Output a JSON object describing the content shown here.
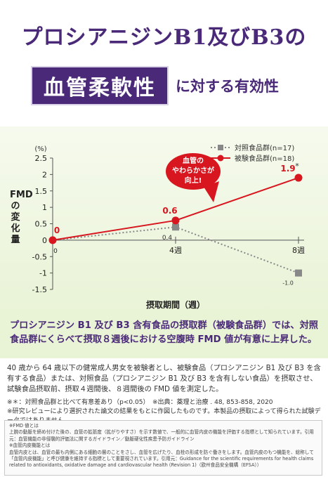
{
  "header": {
    "line1": "プロシアニジンB1及びB3の",
    "highlight": "血管柔軟性",
    "line2_rest": "に対する有効性"
  },
  "chart_data": {
    "type": "line",
    "categories": [
      "0",
      "4週",
      "8週"
    ],
    "xlabel": "摂取期間（週）",
    "ylabel": "FMDの変化量",
    "yunit": "(%)",
    "ylim": [
      -1.5,
      2.5
    ],
    "yticks": [
      "2.5",
      "2",
      "1.5",
      "1",
      "0.5",
      "0",
      "-0.5",
      "-1",
      "-1.5"
    ],
    "series": [
      {
        "name": "対照食品群(n=17)",
        "values": [
          0,
          0.4,
          -1.0
        ],
        "labels": [
          "",
          "0.4",
          "-1.0"
        ],
        "color": "#888888"
      },
      {
        "name": "被験食品群(n=18)",
        "values": [
          0,
          0.6,
          1.9
        ],
        "labels": [
          "0",
          "0.6",
          "1.9"
        ],
        "color": "#d8161f"
      }
    ],
    "significance_mark": "*",
    "callout": [
      "血管の",
      "やわらかさが",
      "向上!"
    ],
    "legend_position": "top-right"
  },
  "summary": "プロシアニジン B1 及び B3 含有食品の摂取群（被験食品群）では、対照食品群にくらべて摂取８週後における空腹時 FMD 値が有意に上昇した。",
  "description": "40 歳から 64 歳以下の健常成人男女を被験者とし、被験食品（プロシアニジン B1 及び B3 を含有する食品）または、対照食品（プロシアニジン B1 及び B3 を含有しない食品）を摂取させ、試験食品摂取前、摂取４週間後、８週間後の FMD 値を測定した。",
  "notes": [
    "※＊：対照食品群と比べて有意差あり（p<0.05）　※出典：薬理と治療 . 48, 853-858, 2020",
    "※研究レビューにより選択された論文の結果をもとに作図したものです。本製品の摂取によって得られた試験データではありません。"
  ],
  "fine_print": [
    "※FMD 値とは",
    "上腕の動脈を締め付けた後の、血管の拡張度（拡がりやすさ）を示す数値で、一般的に血管内皮の機能を評価する指標として知られています。引用元：血管機能の非侵襲的評価法に関するガイドライン／動脈硬化性疾患予防ガイドライン",
    "※血管内皮機能とは",
    "血管内皮とは、血管の最も内側にある細胞の層のことをさし、血管を広げたり、血栓の形成を防ぐ働きをします。血管内皮のもつ機能を、総称して「血管内皮機能」と呼び健康を維持する指標として重要視されています。引用元：Guidance for the scientific requirements for health claims related to antioxidants, oxidative damage and cardiovascular health (Revision 1)（欧州食品安全機構（EFSA））"
  ]
}
